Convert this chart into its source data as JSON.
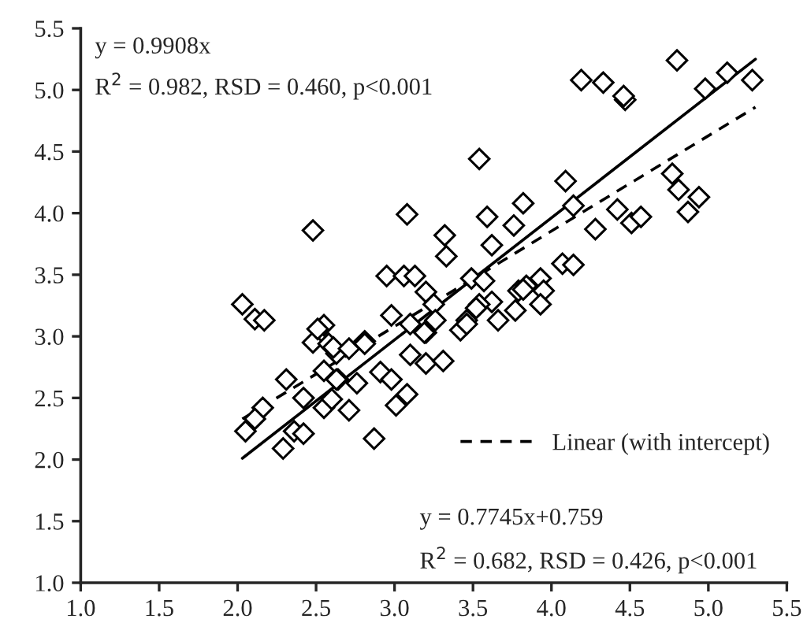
{
  "chart_data": {
    "type": "scatter",
    "grid": false,
    "legend": "bottom right",
    "xlim": [
      1.0,
      5.5
    ],
    "xticks": [
      {
        "value": 1.0,
        "label": "1.0"
      },
      {
        "value": 1.5,
        "label": "1.5"
      },
      {
        "value": 2.0,
        "label": "2.0"
      },
      {
        "value": 2.5,
        "label": "2.5"
      },
      {
        "value": 3.0,
        "label": "3.0"
      },
      {
        "value": 3.5,
        "label": "3.5"
      },
      {
        "value": 4.0,
        "label": "4.0"
      },
      {
        "value": 4.5,
        "label": "4.5"
      },
      {
        "value": 5.0,
        "label": "5.0"
      },
      {
        "value": 5.5,
        "label": "5.5"
      }
    ],
    "ylim": [
      1.0,
      5.5
    ],
    "yticks": [
      {
        "value": 1.0,
        "label": "1.0"
      },
      {
        "value": 1.5,
        "label": "1.5"
      },
      {
        "value": 2.0,
        "label": "2.0"
      },
      {
        "value": 2.5,
        "label": "2.5"
      },
      {
        "value": 3.0,
        "label": "3.0"
      },
      {
        "value": 3.5,
        "label": "3.5"
      },
      {
        "value": 4.0,
        "label": "4.0"
      },
      {
        "value": 4.5,
        "label": "4.5"
      },
      {
        "value": 5.0,
        "label": "5.0"
      },
      {
        "value": 5.5,
        "label": "5.5"
      }
    ],
    "annotations": [
      "y = 0.9908x",
      "R$^{2}$ = 0.982, RSD = 0.460, p<0.001",
      "y = 0.7745x+0.759",
      "R$^{2}$ = 0.682, RSD = 0.426, p<0.001"
    ],
    "series": [
      {
        "marker": "diamond",
        "color": "#000000",
        "x": [
          2.03,
          2.11,
          2.17,
          2.55,
          2.48,
          2.58,
          2.63,
          2.55,
          2.31,
          2.42,
          2.16,
          2.11,
          2.05,
          2.36,
          2.42,
          2.29,
          2.55,
          2.6,
          2.64,
          2.48,
          3.54,
          4.09,
          3.08,
          3.59,
          3.82,
          3.76,
          3.62,
          3.32,
          3.33,
          4.14,
          4.28,
          4.42,
          4.51,
          4.57,
          4.77,
          4.81,
          4.87,
          4.94,
          4.47,
          2.95,
          3.06,
          3.13,
          3.2,
          3.25,
          2.98,
          3.1,
          3.2,
          2.81,
          3.49,
          3.57,
          4.07,
          4.14,
          3.79,
          3.84,
          3.93,
          3.95,
          3.93,
          3.62,
          3.54,
          3.66,
          3.77,
          3.46,
          3.42,
          3.19,
          3.1,
          3.2,
          3.31,
          2.91,
          2.98,
          2.76,
          2.63,
          2.71,
          3.01,
          3.08,
          2.87,
          2.51,
          2.61,
          2.71,
          2.81,
          3.26,
          3.46,
          3.52,
          3.82,
          4.19,
          4.33,
          4.46,
          4.8,
          4.98,
          5.12,
          5.28
        ],
        "values": [
          3.26,
          3.14,
          3.13,
          3.09,
          2.95,
          2.94,
          2.86,
          2.72,
          2.65,
          2.5,
          2.42,
          2.33,
          2.23,
          2.23,
          2.21,
          2.09,
          2.42,
          2.49,
          2.65,
          3.86,
          4.44,
          4.26,
          3.99,
          3.97,
          4.08,
          3.9,
          3.74,
          3.82,
          3.65,
          4.06,
          3.87,
          4.03,
          3.92,
          3.97,
          4.32,
          4.19,
          4.01,
          4.13,
          4.92,
          3.49,
          3.49,
          3.49,
          3.36,
          3.26,
          3.17,
          3.1,
          3.03,
          2.96,
          3.47,
          3.45,
          3.59,
          3.58,
          3.37,
          3.41,
          3.47,
          3.37,
          3.26,
          3.28,
          3.26,
          3.13,
          3.21,
          3.13,
          3.05,
          3.03,
          2.85,
          2.78,
          2.8,
          2.71,
          2.65,
          2.62,
          2.65,
          2.4,
          2.44,
          2.53,
          2.17,
          3.06,
          2.91,
          2.9,
          2.94,
          3.13,
          3.1,
          3.23,
          3.38,
          5.08,
          5.06,
          4.95,
          5.24,
          5.01,
          5.14,
          5.08
        ]
      },
      {
        "type": "line",
        "marker": "none",
        "color": "#000000",
        "line_style": "solid",
        "x": [
          2.03,
          5.3
        ],
        "values": [
          2.01,
          5.25
        ]
      },
      {
        "type": "line",
        "marker": "none",
        "name": "Linear (with intercept)",
        "color": "#000000",
        "line_style": "dashed",
        "x": [
          2.03,
          5.3
        ],
        "values": [
          2.33,
          4.86
        ]
      }
    ]
  }
}
